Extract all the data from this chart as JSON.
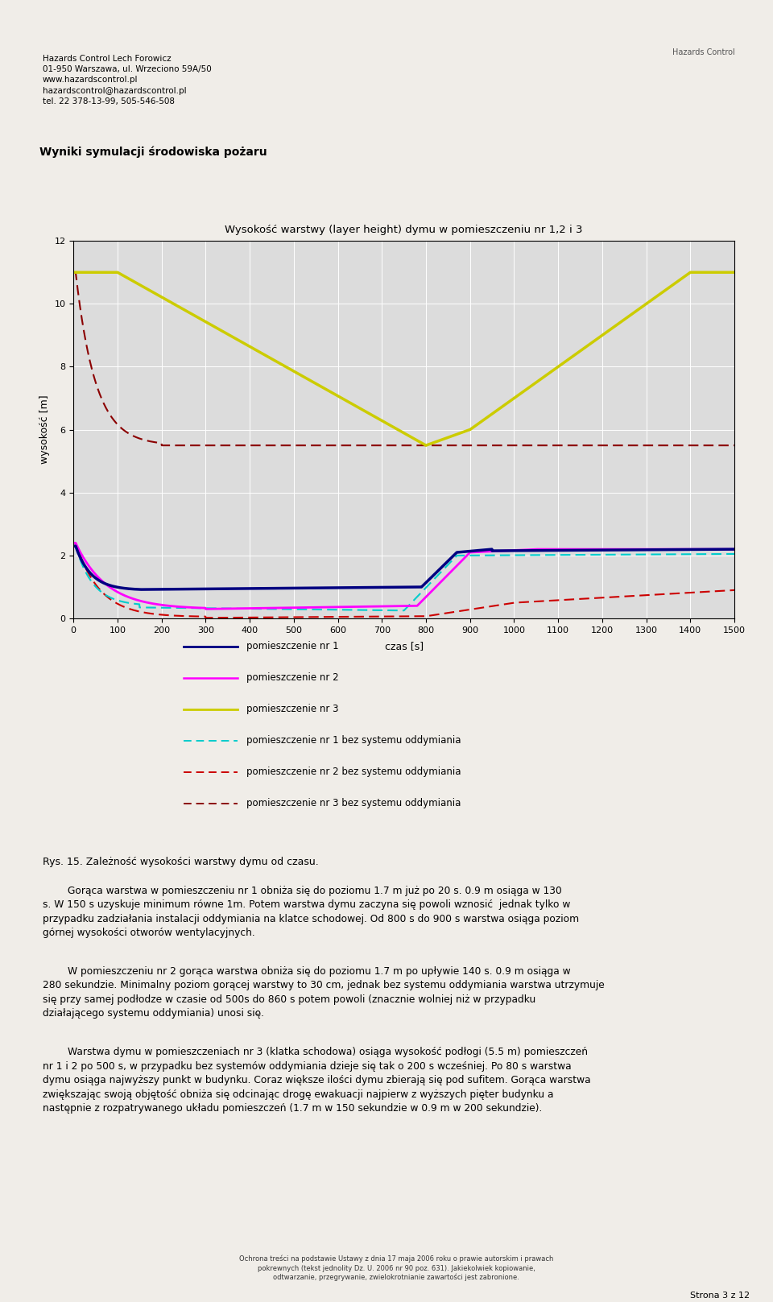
{
  "title": "Wysokość warstwy (layer height) dymu w pomieszczeniu nr 1,2 i 3",
  "xlabel": "czas [s]",
  "ylabel": "wysokość [m]",
  "xlim": [
    0,
    1500
  ],
  "ylim": [
    0,
    12
  ],
  "yticks": [
    0,
    2,
    4,
    6,
    8,
    10,
    12
  ],
  "xticks": [
    0,
    100,
    200,
    300,
    400,
    500,
    600,
    700,
    800,
    900,
    1000,
    1100,
    1200,
    1300,
    1400,
    1500
  ],
  "header_lines": "Hazards Control Lech Forowicz\n01-950 Warszawa, ul. Wrzeciono 59A/50\nwww.hazardscontrol.pl\nhazardscontrol@hazardscontrol.pl\ntel. 22 378-13-99, 505-546-508",
  "section_title": "Wyniki symulacji środowiska pożaru",
  "caption_title": "Rys. 15. Zależność wysokości warstwy dymu od czasu.",
  "caption_paragraphs": [
    "\tGorąca warstwa w pomieszczeniu nr 1 obniża się do poziomu 1.7 m już po 20 s. 0.9 m osiąga w 130 s. W 150 s uzyskuje minimum równe 1m. Potem warstwa dymu zaczyna się powoli wznosić  jednak tylko w przypadku zadziałania instalacji oddymiania na klatce schodowej. Od 800 s do 900 s warstwa osiąga poziom górnej wysokości otworów wentylacyjnych.",
    "\tW pomieszczeniu nr 2 gorąca warstwa obniża się do poziomu 1.7 m po upływie 140 s. 0.9 m osiąga w 280 sekundzie. Minimalny poziom gorącej warstwy to 30 cm, jednak bez systemu oddymiania warstwa utrzymuje się przy samej podłodze w czasie od 500s do 860 s potem powoli (znacznie wolniej niż w przypadku działającego systemu oddymiania) unosi się.",
    "\tWarstwa dymu w pomieszczeniach nr 3 (klatka schodowa) osiąga wysokość podłogi (5.5 m) pomieszczeń nr 1 i 2 po 500 s, w przypadku bez systemów oddymiania dzieje się tak o 200 s wcześniej. Po 80 s warstwa dymu osiąga najwyższy punkt w budynku. Coraz większe ilości dymu zbierają się pod sufitem. Gorąca warstwa zwiększając swoją objętość obniża się odcinając drogę ewakuacji najpierw z wyższych pięter budynku a następnie z rozpatrywanego układu pomieszczeń (1.7 m w 150 sekundzie w 0.9 m w 200 sekundzie)."
  ],
  "footer_text": "Ochrona treści na podstawie Ustawy z dnia 17 maja 2006 roku o prawie autorskim i prawach\npokrewnych (tekst jednolity Dz. U. 2006 nr 90 poz. 631). Jakiekolwiek kopiowanie,\nodtwarzanie, przegrywanie, zwielokrotnianie zawartości jest zabronione.",
  "page_text": "Strona 3 z 12",
  "colors": {
    "r1": "#000080",
    "r2": "#FF00FF",
    "r3": "#CCCC00",
    "r1_no": "#00CCCC",
    "r2_no": "#CC0000",
    "r3_no": "#8B0000"
  },
  "page_bg": "#F0EDE8",
  "chart_box_bg": "#FFFFFF",
  "plot_bg": "#DCDCDC"
}
